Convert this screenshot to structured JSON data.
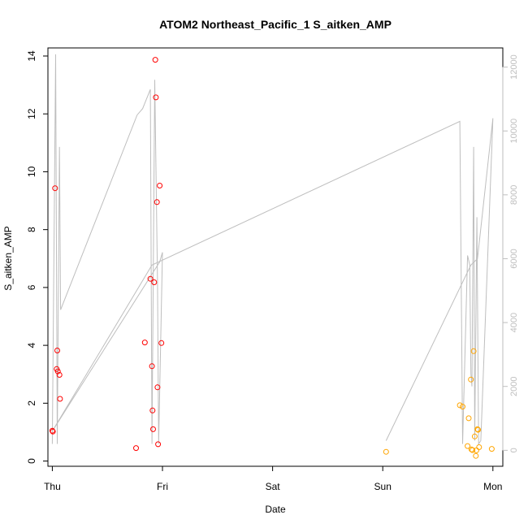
{
  "chart_data": {
    "type": "scatter",
    "title": "ATOM2 Northeast_Pacific_1 S_aitken_AMP",
    "xlabel": "Date",
    "ylabel": "S_aitken_AMP",
    "x_tick_labels": [
      "Thu",
      "Fri",
      "Sat",
      "Sun",
      "Mon"
    ],
    "y_ticks": [
      0,
      2,
      4,
      6,
      8,
      10,
      12,
      14
    ],
    "y2_ticks": [
      0,
      2000,
      4000,
      6000,
      8000,
      10000,
      12000
    ],
    "xlim": [
      -0.04,
      4.09
    ],
    "ylim": [
      -0.18,
      14.28
    ],
    "y2lim": [
      -500,
      12600
    ],
    "grid": false,
    "colors": {
      "red": "#ff0000",
      "orange": "#ffa500",
      "line": "#bebebe",
      "right_axis": "#bebebe",
      "axis": "#000000"
    },
    "series": [
      {
        "axis": "left",
        "kind": "points",
        "color": "#ff0000",
        "points": [
          [
            0.0,
            1.05
          ],
          [
            0.005,
            1.02
          ],
          [
            0.025,
            9.43
          ],
          [
            0.04,
            3.18
          ],
          [
            0.045,
            3.82
          ],
          [
            0.05,
            3.1
          ],
          [
            0.065,
            2.98
          ],
          [
            0.07,
            2.15
          ],
          [
            0.76,
            0.45
          ],
          [
            0.84,
            4.1
          ],
          [
            0.89,
            6.3
          ],
          [
            0.905,
            3.28
          ],
          [
            0.91,
            1.75
          ],
          [
            0.915,
            1.1
          ],
          [
            0.925,
            6.18
          ],
          [
            0.935,
            13.87
          ],
          [
            0.94,
            12.57
          ],
          [
            0.95,
            8.95
          ],
          [
            0.955,
            2.55
          ],
          [
            0.96,
            0.58
          ],
          [
            0.975,
            9.52
          ],
          [
            0.99,
            4.08
          ]
        ]
      },
      {
        "axis": "left",
        "kind": "points",
        "color": "#ffa500",
        "points": [
          [
            3.03,
            0.32
          ],
          [
            3.7,
            1.93
          ],
          [
            3.725,
            1.88
          ],
          [
            3.77,
            0.52
          ],
          [
            3.78,
            1.48
          ],
          [
            3.8,
            2.82
          ],
          [
            3.805,
            0.4
          ],
          [
            3.815,
            0.38
          ],
          [
            3.825,
            3.8
          ],
          [
            3.835,
            0.85
          ],
          [
            3.845,
            0.18
          ],
          [
            3.85,
            0.37
          ],
          [
            3.86,
            1.1
          ],
          [
            3.865,
            1.08
          ],
          [
            3.875,
            0.48
          ],
          [
            3.99,
            0.42
          ]
        ]
      },
      {
        "axis": "right",
        "kind": "line",
        "color": "#bebebe",
        "points": [
          [
            0.0,
            200
          ],
          [
            0.03,
            12400
          ],
          [
            0.045,
            200
          ],
          [
            0.065,
            9500
          ],
          [
            0.075,
            4400
          ],
          [
            0.77,
            10500
          ],
          [
            0.82,
            10700
          ],
          [
            0.89,
            11300
          ],
          [
            0.905,
            200
          ],
          [
            0.93,
            11600
          ],
          [
            0.955,
            5300
          ],
          [
            0.965,
            200
          ],
          [
            1.0,
            6200
          ],
          [
            0.975,
            5900
          ],
          [
            0.0,
            600
          ],
          [
            0.905,
            5800
          ],
          [
            3.7,
            10300
          ],
          [
            3.725,
            200
          ],
          [
            3.77,
            6100
          ],
          [
            3.79,
            5800
          ],
          [
            3.8,
            2400
          ],
          [
            3.81,
            2000
          ],
          [
            3.825,
            9500
          ],
          [
            3.835,
            300
          ],
          [
            3.855,
            7300
          ],
          [
            3.87,
            200
          ],
          [
            3.89,
            300
          ],
          [
            4.0,
            10400
          ],
          [
            3.86,
            6000
          ],
          [
            3.8,
            5800
          ],
          [
            3.03,
            300
          ]
        ]
      }
    ]
  }
}
